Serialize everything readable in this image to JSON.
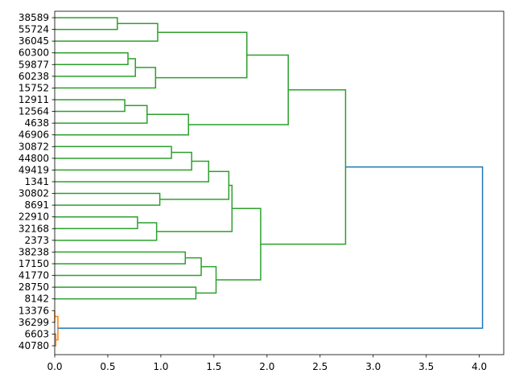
{
  "chart_data": {
    "type": "dendrogram",
    "orientation": "horizontal",
    "xlim": [
      0.0,
      4.23
    ],
    "xticks": [
      0.0,
      0.5,
      1.0,
      1.5,
      2.0,
      2.5,
      3.0,
      3.5,
      4.0
    ],
    "xtick_labels": [
      "0.0",
      "0.5",
      "1.0",
      "1.5",
      "2.0",
      "2.5",
      "3.0",
      "3.5",
      "4.0"
    ],
    "leaves": [
      "38589",
      "55724",
      "36045",
      "60300",
      "59877",
      "60238",
      "15752",
      "12911",
      "12564",
      "4638",
      "46906",
      "30872",
      "44800",
      "49419",
      "1341",
      "30802",
      "8691",
      "22910",
      "32168",
      "2373",
      "38238",
      "17150",
      "41770",
      "28750",
      "8142",
      "13376",
      "36299",
      "6603",
      "40780"
    ],
    "merges": [
      {
        "a": "38589",
        "b": "55724",
        "height": 0.59,
        "color": "#2ca02c"
      },
      {
        "a": 0,
        "b": "36045",
        "height": 0.97,
        "color": "#2ca02c"
      },
      {
        "a": "60300",
        "b": "59877",
        "height": 0.69,
        "color": "#2ca02c"
      },
      {
        "a": 2,
        "b": "60238",
        "height": 0.76,
        "color": "#2ca02c"
      },
      {
        "a": 3,
        "b": "15752",
        "height": 0.95,
        "color": "#2ca02c"
      },
      {
        "a": 1,
        "b": 4,
        "height": 1.81,
        "color": "#2ca02c"
      },
      {
        "a": "12911",
        "b": "12564",
        "height": 0.66,
        "color": "#2ca02c"
      },
      {
        "a": 6,
        "b": "4638",
        "height": 0.87,
        "color": "#2ca02c"
      },
      {
        "a": 7,
        "b": "46906",
        "height": 1.26,
        "color": "#2ca02c"
      },
      {
        "a": 5,
        "b": 8,
        "height": 2.2,
        "color": "#2ca02c"
      },
      {
        "a": "30872",
        "b": "44800",
        "height": 1.1,
        "color": "#2ca02c"
      },
      {
        "a": 10,
        "b": "49419",
        "height": 1.29,
        "color": "#2ca02c"
      },
      {
        "a": 11,
        "b": "1341",
        "height": 1.45,
        "color": "#2ca02c"
      },
      {
        "a": "30802",
        "b": "8691",
        "height": 0.99,
        "color": "#2ca02c"
      },
      {
        "a": 12,
        "b": 13,
        "height": 1.64,
        "color": "#2ca02c"
      },
      {
        "a": "22910",
        "b": "32168",
        "height": 0.78,
        "color": "#2ca02c"
      },
      {
        "a": 15,
        "b": "2373",
        "height": 0.96,
        "color": "#2ca02c"
      },
      {
        "a": 14,
        "b": 16,
        "height": 1.67,
        "color": "#2ca02c"
      },
      {
        "a": "38238",
        "b": "17150",
        "height": 1.23,
        "color": "#2ca02c"
      },
      {
        "a": 18,
        "b": "41770",
        "height": 1.38,
        "color": "#2ca02c"
      },
      {
        "a": "28750",
        "b": "8142",
        "height": 1.33,
        "color": "#2ca02c"
      },
      {
        "a": 19,
        "b": 20,
        "height": 1.52,
        "color": "#2ca02c"
      },
      {
        "a": 17,
        "b": 21,
        "height": 1.94,
        "color": "#2ca02c"
      },
      {
        "a": 9,
        "b": 22,
        "height": 2.74,
        "color": "#2ca02c"
      },
      {
        "a": "13376",
        "b": "36299",
        "height": 0.0,
        "color": "#ff7f0e"
      },
      {
        "a": "6603",
        "b": "40780",
        "height": 0.01,
        "color": "#ff7f0e"
      },
      {
        "a": 24,
        "b": 25,
        "height": 0.03,
        "color": "#ff7f0e"
      },
      {
        "a": 23,
        "b": 26,
        "height": 4.03,
        "color": "#1f77b4"
      }
    ],
    "grid": false,
    "xlabel": "",
    "ylabel": "",
    "title": ""
  }
}
